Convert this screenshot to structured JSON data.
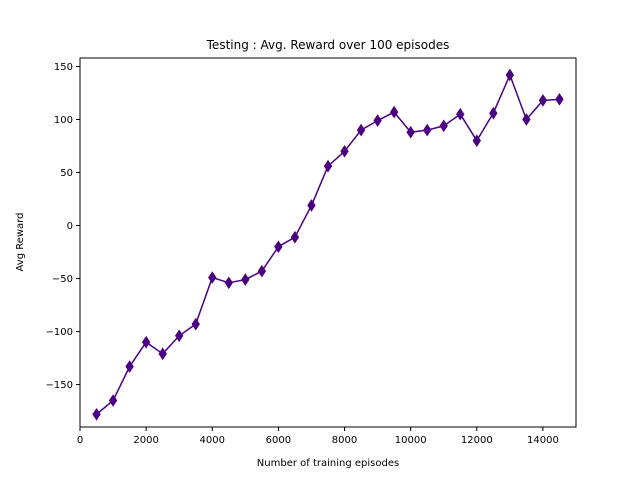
{
  "chart_data": {
    "type": "line",
    "title": "Testing : Avg. Reward over 100 episodes",
    "xlabel": "Number of training episodes",
    "ylabel": "Avg Reward",
    "xlim": [
      0,
      15000
    ],
    "ylim": [
      -190,
      158
    ],
    "x_ticks": [
      0,
      2000,
      4000,
      6000,
      8000,
      10000,
      12000,
      14000
    ],
    "y_ticks": [
      -150,
      -100,
      -50,
      0,
      50,
      100,
      150
    ],
    "x_tick_labels": [
      "0",
      "2000",
      "4000",
      "6000",
      "8000",
      "10000",
      "12000",
      "14000"
    ],
    "y_tick_labels": [
      "−150",
      "−100",
      "−50",
      "0",
      "50",
      "100",
      "150"
    ],
    "grid": false,
    "legend": false,
    "series": [
      {
        "color": "#4b0082",
        "marker": "thin-diamond",
        "x": [
          500,
          1000,
          1500,
          2000,
          2500,
          3000,
          3500,
          4000,
          4500,
          5000,
          5500,
          6000,
          6500,
          7000,
          7500,
          8000,
          8500,
          9000,
          9500,
          10000,
          10500,
          11000,
          11500,
          12000,
          12500,
          13000,
          13500,
          14000,
          14500
        ],
        "y": [
          -178,
          -165,
          -133,
          -110,
          -121,
          -104,
          -93,
          -49,
          -54,
          -51,
          -43,
          -20,
          -11,
          19,
          56,
          70,
          90,
          99,
          107,
          88,
          90,
          94,
          105,
          80,
          106,
          142,
          100,
          118,
          119
        ]
      }
    ]
  }
}
